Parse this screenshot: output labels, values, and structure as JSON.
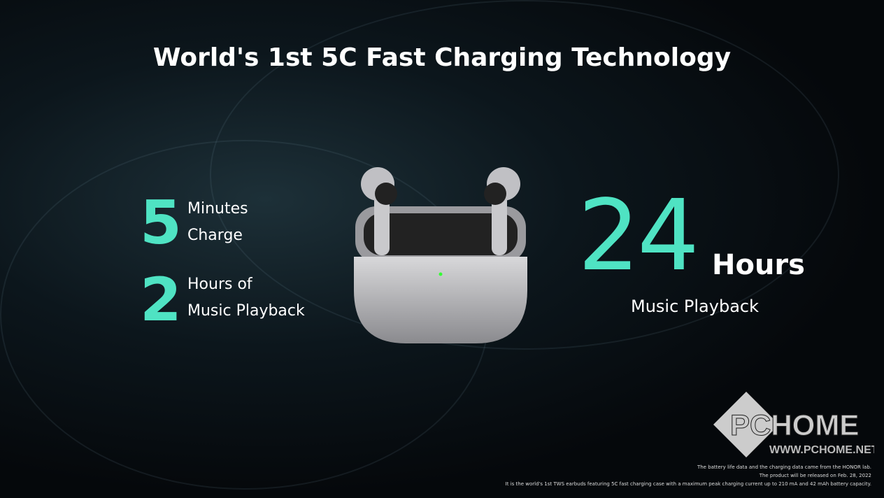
{
  "title": "World's 1st 5C Fast Charging Technology",
  "left": {
    "stat1": {
      "value": "5",
      "line1": "Minutes",
      "line2": "Charge"
    },
    "stat2": {
      "value": "2",
      "line1": "Hours of",
      "line2": "Music Playback"
    }
  },
  "right": {
    "value": "24",
    "unit": "Hours",
    "caption": "Music Playback"
  },
  "footnotes": [
    "The battery life data and the charging data came from the HONOR lab.",
    "The product will be released on Feb. 28, 2022",
    "It is the world's 1st TWS earbuds featuring 5C fast charging case with a maximum peak charging current up to 210 mA and 42 mAh battery capacity."
  ],
  "watermark": {
    "logo": "PCHOME",
    "url": "WWW.PCHOME.NET"
  },
  "colors": {
    "accent": "#4fe3c3"
  }
}
